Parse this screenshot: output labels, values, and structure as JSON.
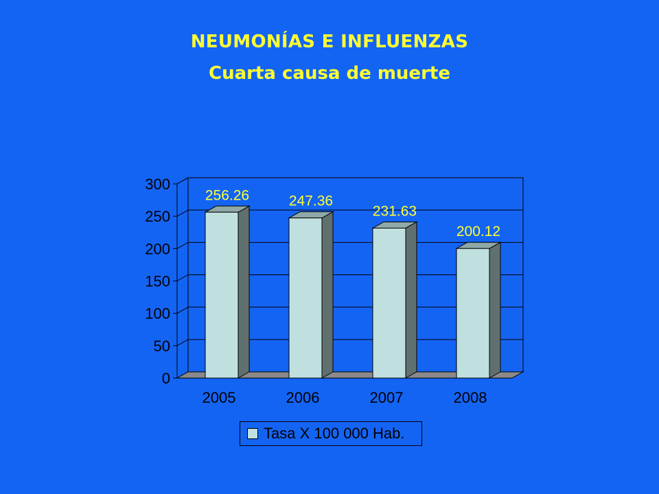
{
  "slide": {
    "title": "NEUMONÍAS E INFLUENZAS",
    "subtitle": "Cuarta causa de muerte"
  },
  "colors": {
    "background": "#1464F4",
    "title": "#FFFF33",
    "bar_front": "#C0E0E0",
    "bar_side": "#607070",
    "bar_top": "#8FA8A8",
    "floor": "#8A8A8A",
    "data_label": "#FFFF33"
  },
  "chart_data": {
    "type": "bar",
    "style": "3d-column",
    "categories": [
      "2005",
      "2006",
      "2007",
      "2008"
    ],
    "series": [
      {
        "name": "Tasa X 100 000 Hab.",
        "values": [
          256.26,
          247.36,
          231.63,
          200.12
        ]
      }
    ],
    "data_labels": [
      "256.26",
      "247.36",
      "231.63",
      "200.12"
    ],
    "ylim": [
      0,
      300
    ],
    "yticks": [
      0,
      50,
      100,
      150,
      200,
      250,
      300
    ],
    "grid": true,
    "legend_position": "bottom"
  }
}
